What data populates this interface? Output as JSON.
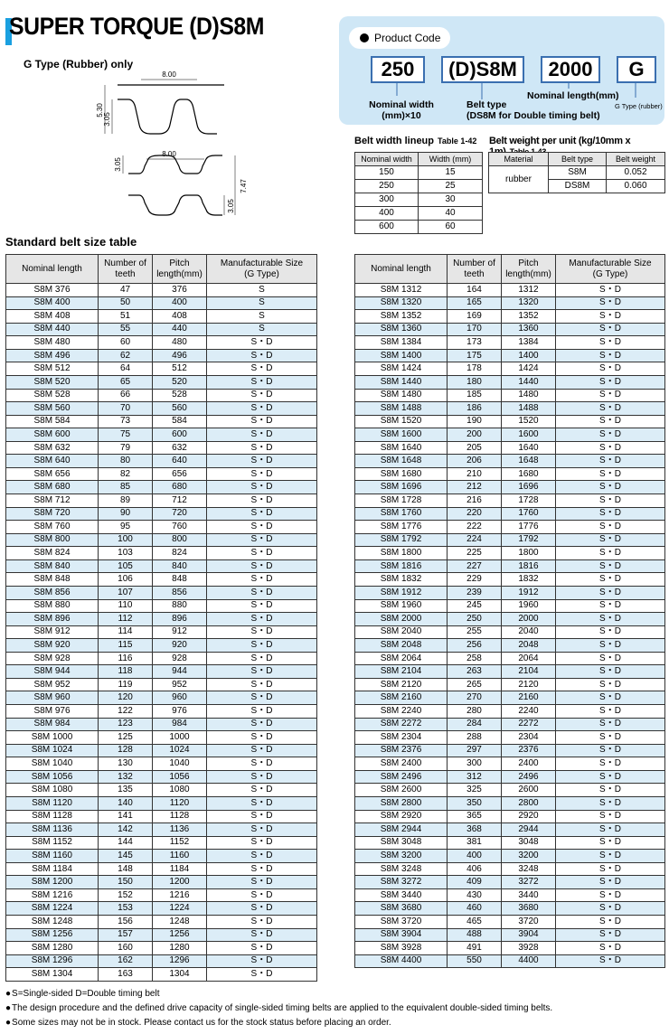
{
  "header": {
    "title": "SUPER TORQUE (D)S8M",
    "subtitle": "G Type (Rubber) only"
  },
  "diagram": {
    "single": {
      "pitch": "8.00",
      "height": "5.30",
      "tooth": "3.05"
    },
    "double": {
      "pitch": "8.00",
      "tooth_top": "3.05",
      "height": "7.47",
      "tooth_bottom": "3.05"
    }
  },
  "product_code": {
    "label": "Product Code",
    "parts": [
      {
        "code": "250",
        "desc": "Nominal width\n(mm)×10"
      },
      {
        "code": "(D)S8M",
        "desc": "Belt type\n(DS8M for Double timing belt)"
      },
      {
        "code": "2000",
        "desc": "Nominal length(mm)"
      },
      {
        "code": "G",
        "desc": "G Type (rubber)"
      }
    ]
  },
  "width_table": {
    "title": "Belt width lineup",
    "number": "Table 1-42",
    "columns": [
      "Nominal width",
      "Width (mm)"
    ],
    "rows": [
      [
        "150",
        "15"
      ],
      [
        "250",
        "25"
      ],
      [
        "300",
        "30"
      ],
      [
        "400",
        "40"
      ],
      [
        "600",
        "60"
      ]
    ]
  },
  "weight_table": {
    "title": "Belt weight per unit (kg/10mm x 1m)",
    "number": "Table 1-43",
    "columns": [
      "Material",
      "Belt type",
      "Belt weight"
    ],
    "material": "rubber",
    "rows": [
      [
        "S8M",
        "0.052"
      ],
      [
        "DS8M",
        "0.060"
      ]
    ]
  },
  "size_table": {
    "title": "Standard belt size table",
    "columns": [
      "Nominal length",
      "Number of\nteeth",
      "Pitch\nlength(mm)",
      "Manufacturable Size\n(G Type)"
    ],
    "left": [
      [
        "S8M 376",
        "47",
        "376",
        "S"
      ],
      [
        "S8M 400",
        "50",
        "400",
        "S"
      ],
      [
        "S8M 408",
        "51",
        "408",
        "S"
      ],
      [
        "S8M 440",
        "55",
        "440",
        "S"
      ],
      [
        "S8M 480",
        "60",
        "480",
        "S・D"
      ],
      [
        "S8M 496",
        "62",
        "496",
        "S・D"
      ],
      [
        "S8M 512",
        "64",
        "512",
        "S・D"
      ],
      [
        "S8M 520",
        "65",
        "520",
        "S・D"
      ],
      [
        "S8M 528",
        "66",
        "528",
        "S・D"
      ],
      [
        "S8M 560",
        "70",
        "560",
        "S・D"
      ],
      [
        "S8M 584",
        "73",
        "584",
        "S・D"
      ],
      [
        "S8M 600",
        "75",
        "600",
        "S・D"
      ],
      [
        "S8M 632",
        "79",
        "632",
        "S・D"
      ],
      [
        "S8M 640",
        "80",
        "640",
        "S・D"
      ],
      [
        "S8M 656",
        "82",
        "656",
        "S・D"
      ],
      [
        "S8M 680",
        "85",
        "680",
        "S・D"
      ],
      [
        "S8M 712",
        "89",
        "712",
        "S・D"
      ],
      [
        "S8M 720",
        "90",
        "720",
        "S・D"
      ],
      [
        "S8M 760",
        "95",
        "760",
        "S・D"
      ],
      [
        "S8M 800",
        "100",
        "800",
        "S・D"
      ],
      [
        "S8M 824",
        "103",
        "824",
        "S・D"
      ],
      [
        "S8M 840",
        "105",
        "840",
        "S・D"
      ],
      [
        "S8M 848",
        "106",
        "848",
        "S・D"
      ],
      [
        "S8M 856",
        "107",
        "856",
        "S・D"
      ],
      [
        "S8M 880",
        "110",
        "880",
        "S・D"
      ],
      [
        "S8M 896",
        "112",
        "896",
        "S・D"
      ],
      [
        "S8M 912",
        "114",
        "912",
        "S・D"
      ],
      [
        "S8M 920",
        "115",
        "920",
        "S・D"
      ],
      [
        "S8M 928",
        "116",
        "928",
        "S・D"
      ],
      [
        "S8M 944",
        "118",
        "944",
        "S・D"
      ],
      [
        "S8M 952",
        "119",
        "952",
        "S・D"
      ],
      [
        "S8M 960",
        "120",
        "960",
        "S・D"
      ],
      [
        "S8M 976",
        "122",
        "976",
        "S・D"
      ],
      [
        "S8M 984",
        "123",
        "984",
        "S・D"
      ],
      [
        "S8M 1000",
        "125",
        "1000",
        "S・D"
      ],
      [
        "S8M 1024",
        "128",
        "1024",
        "S・D"
      ],
      [
        "S8M 1040",
        "130",
        "1040",
        "S・D"
      ],
      [
        "S8M 1056",
        "132",
        "1056",
        "S・D"
      ],
      [
        "S8M 1080",
        "135",
        "1080",
        "S・D"
      ],
      [
        "S8M 1120",
        "140",
        "1120",
        "S・D"
      ],
      [
        "S8M 1128",
        "141",
        "1128",
        "S・D"
      ],
      [
        "S8M 1136",
        "142",
        "1136",
        "S・D"
      ],
      [
        "S8M 1152",
        "144",
        "1152",
        "S・D"
      ],
      [
        "S8M 1160",
        "145",
        "1160",
        "S・D"
      ],
      [
        "S8M 1184",
        "148",
        "1184",
        "S・D"
      ],
      [
        "S8M 1200",
        "150",
        "1200",
        "S・D"
      ],
      [
        "S8M 1216",
        "152",
        "1216",
        "S・D"
      ],
      [
        "S8M 1224",
        "153",
        "1224",
        "S・D"
      ],
      [
        "S8M 1248",
        "156",
        "1248",
        "S・D"
      ],
      [
        "S8M 1256",
        "157",
        "1256",
        "S・D"
      ],
      [
        "S8M 1280",
        "160",
        "1280",
        "S・D"
      ],
      [
        "S8M 1296",
        "162",
        "1296",
        "S・D"
      ],
      [
        "S8M 1304",
        "163",
        "1304",
        "S・D"
      ]
    ],
    "right": [
      [
        "S8M 1312",
        "164",
        "1312",
        "S・D"
      ],
      [
        "S8M 1320",
        "165",
        "1320",
        "S・D"
      ],
      [
        "S8M 1352",
        "169",
        "1352",
        "S・D"
      ],
      [
        "S8M 1360",
        "170",
        "1360",
        "S・D"
      ],
      [
        "S8M 1384",
        "173",
        "1384",
        "S・D"
      ],
      [
        "S8M 1400",
        "175",
        "1400",
        "S・D"
      ],
      [
        "S8M 1424",
        "178",
        "1424",
        "S・D"
      ],
      [
        "S8M 1440",
        "180",
        "1440",
        "S・D"
      ],
      [
        "S8M 1480",
        "185",
        "1480",
        "S・D"
      ],
      [
        "S8M 1488",
        "186",
        "1488",
        "S・D"
      ],
      [
        "S8M 1520",
        "190",
        "1520",
        "S・D"
      ],
      [
        "S8M 1600",
        "200",
        "1600",
        "S・D"
      ],
      [
        "S8M 1640",
        "205",
        "1640",
        "S・D"
      ],
      [
        "S8M 1648",
        "206",
        "1648",
        "S・D"
      ],
      [
        "S8M 1680",
        "210",
        "1680",
        "S・D"
      ],
      [
        "S8M 1696",
        "212",
        "1696",
        "S・D"
      ],
      [
        "S8M 1728",
        "216",
        "1728",
        "S・D"
      ],
      [
        "S8M 1760",
        "220",
        "1760",
        "S・D"
      ],
      [
        "S8M 1776",
        "222",
        "1776",
        "S・D"
      ],
      [
        "S8M 1792",
        "224",
        "1792",
        "S・D"
      ],
      [
        "S8M 1800",
        "225",
        "1800",
        "S・D"
      ],
      [
        "S8M 1816",
        "227",
        "1816",
        "S・D"
      ],
      [
        "S8M 1832",
        "229",
        "1832",
        "S・D"
      ],
      [
        "S8M 1912",
        "239",
        "1912",
        "S・D"
      ],
      [
        "S8M 1960",
        "245",
        "1960",
        "S・D"
      ],
      [
        "S8M 2000",
        "250",
        "2000",
        "S・D"
      ],
      [
        "S8M 2040",
        "255",
        "2040",
        "S・D"
      ],
      [
        "S8M 2048",
        "256",
        "2048",
        "S・D"
      ],
      [
        "S8M 2064",
        "258",
        "2064",
        "S・D"
      ],
      [
        "S8M 2104",
        "263",
        "2104",
        "S・D"
      ],
      [
        "S8M 2120",
        "265",
        "2120",
        "S・D"
      ],
      [
        "S8M 2160",
        "270",
        "2160",
        "S・D"
      ],
      [
        "S8M 2240",
        "280",
        "2240",
        "S・D"
      ],
      [
        "S8M 2272",
        "284",
        "2272",
        "S・D"
      ],
      [
        "S8M 2304",
        "288",
        "2304",
        "S・D"
      ],
      [
        "S8M 2376",
        "297",
        "2376",
        "S・D"
      ],
      [
        "S8M 2400",
        "300",
        "2400",
        "S・D"
      ],
      [
        "S8M 2496",
        "312",
        "2496",
        "S・D"
      ],
      [
        "S8M 2600",
        "325",
        "2600",
        "S・D"
      ],
      [
        "S8M 2800",
        "350",
        "2800",
        "S・D"
      ],
      [
        "S8M 2920",
        "365",
        "2920",
        "S・D"
      ],
      [
        "S8M 2944",
        "368",
        "2944",
        "S・D"
      ],
      [
        "S8M 3048",
        "381",
        "3048",
        "S・D"
      ],
      [
        "S8M 3200",
        "400",
        "3200",
        "S・D"
      ],
      [
        "S8M 3248",
        "406",
        "3248",
        "S・D"
      ],
      [
        "S8M 3272",
        "409",
        "3272",
        "S・D"
      ],
      [
        "S8M 3440",
        "430",
        "3440",
        "S・D"
      ],
      [
        "S8M 3680",
        "460",
        "3680",
        "S・D"
      ],
      [
        "S8M 3720",
        "465",
        "3720",
        "S・D"
      ],
      [
        "S8M 3904",
        "488",
        "3904",
        "S・D"
      ],
      [
        "S8M 3928",
        "491",
        "3928",
        "S・D"
      ],
      [
        "S8M 4400",
        "550",
        "4400",
        "S・D"
      ]
    ]
  },
  "notes": [
    "S=Single-sided  D=Double timing belt",
    "The design procedure and the defined drive capacity of single-sided timing belts are applied to the equivalent double-sided timing belts.",
    "Some sizes may not be in stock.  Please contact us for the stock status before placing an order."
  ]
}
